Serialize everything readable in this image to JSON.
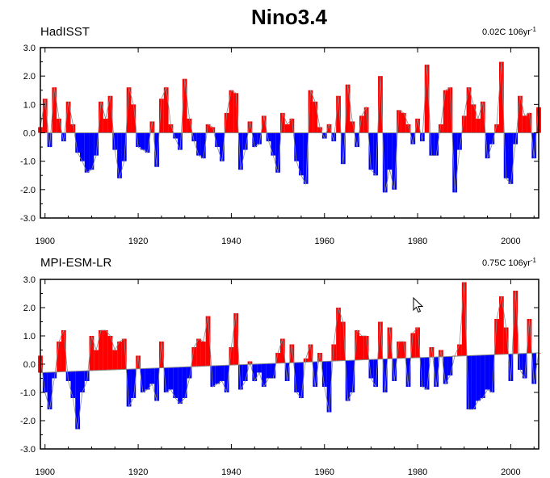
{
  "title": "Nino3.4",
  "chart_data": [
    {
      "type": "area",
      "title": "HadISST",
      "trend_label": "0.02C 106yr",
      "trend_label_sup": "-1",
      "x_ticks": [
        1900,
        1920,
        1940,
        1960,
        1980,
        2000
      ],
      "y_ticks": [
        3.0,
        2.0,
        1.0,
        0.0,
        -1.0,
        -2.0,
        -3.0
      ],
      "xlim": [
        1899,
        2006
      ],
      "ylim": [
        -3,
        3
      ],
      "baseline": [
        [
          1899,
          0.0
        ],
        [
          2006,
          0.0
        ]
      ],
      "colors": {
        "positive": "#ff0000",
        "negative": "#0000ff",
        "line": "#888888"
      },
      "series": [
        {
          "x": [
            1899,
            1900,
            1901,
            1902,
            1903,
            1904,
            1905,
            1906,
            1907,
            1908,
            1909,
            1910,
            1911,
            1912,
            1913,
            1914,
            1915,
            1916,
            1917,
            1918,
            1919,
            1920,
            1921,
            1922,
            1923,
            1924,
            1925,
            1926,
            1927,
            1928,
            1929,
            1930,
            1931,
            1932,
            1933,
            1934,
            1935,
            1936,
            1937,
            1938,
            1939,
            1940,
            1941,
            1942,
            1943,
            1944,
            1945,
            1946,
            1947,
            1948,
            1949,
            1950,
            1951,
            1952,
            1953,
            1954,
            1955,
            1956,
            1957,
            1958,
            1959,
            1960,
            1961,
            1962,
            1963,
            1964,
            1965,
            1966,
            1967,
            1968,
            1969,
            1970,
            1971,
            1972,
            1973,
            1974,
            1975,
            1976,
            1977,
            1978,
            1979,
            1980,
            1981,
            1982,
            1983,
            1984,
            1985,
            1986,
            1987,
            1988,
            1989,
            1990,
            1991,
            1992,
            1993,
            1994,
            1995,
            1996,
            1997,
            1998,
            1999,
            2000,
            2001,
            2002,
            2003,
            2004,
            2005,
            2006
          ],
          "values": [
            0.2,
            1.2,
            -0.5,
            1.6,
            0.5,
            -0.3,
            1.1,
            0.3,
            -0.7,
            -1.0,
            -1.4,
            -1.3,
            -0.8,
            1.1,
            0.5,
            1.3,
            -0.6,
            -1.6,
            -1.0,
            1.6,
            1.0,
            -0.5,
            -0.6,
            -0.7,
            0.4,
            -1.2,
            1.2,
            1.6,
            0.3,
            -0.2,
            -0.6,
            1.9,
            0.5,
            -0.3,
            -0.8,
            -0.9,
            0.3,
            0.2,
            -0.5,
            -1.0,
            0.7,
            1.5,
            1.4,
            -1.3,
            -0.6,
            0.4,
            -0.5,
            -0.4,
            0.6,
            -0.3,
            -0.8,
            -1.4,
            0.7,
            0.3,
            0.5,
            -1.0,
            -1.5,
            -1.8,
            1.5,
            1.1,
            0.2,
            -0.2,
            0.3,
            -0.3,
            1.3,
            -1.1,
            1.7,
            0.4,
            -0.5,
            0.6,
            0.9,
            -1.3,
            -1.5,
            2.0,
            -2.1,
            -1.3,
            -2.0,
            0.8,
            0.7,
            0.3,
            -0.4,
            0.5,
            -0.3,
            2.4,
            -0.8,
            -0.8,
            0.3,
            1.5,
            1.6,
            -2.1,
            -0.6,
            0.6,
            1.6,
            1.0,
            0.5,
            1.1,
            -0.9,
            -0.4,
            0.3,
            2.5,
            -1.6,
            -1.8,
            -0.4,
            1.3,
            0.6,
            0.7,
            -0.9,
            0.9
          ]
        }
      ]
    },
    {
      "type": "area",
      "title": "MPI-ESM-LR",
      "trend_label": "0.75C 106yr",
      "trend_label_sup": "-1",
      "x_ticks": [
        1900,
        1920,
        1940,
        1960,
        1980,
        2000
      ],
      "y_ticks": [
        3.0,
        2.0,
        1.0,
        0.0,
        -1.0,
        -2.0,
        -3.0
      ],
      "xlim": [
        1899,
        2006
      ],
      "ylim": [
        -3,
        3
      ],
      "baseline": [
        [
          1899,
          -0.3
        ],
        [
          2006,
          0.4
        ]
      ],
      "colors": {
        "positive": "#ff0000",
        "negative": "#0000ff",
        "line": "#888888"
      },
      "series": [
        {
          "x": [
            1899,
            1900,
            1901,
            1902,
            1903,
            1904,
            1905,
            1906,
            1907,
            1908,
            1909,
            1910,
            1911,
            1912,
            1913,
            1914,
            1915,
            1916,
            1917,
            1918,
            1919,
            1920,
            1921,
            1922,
            1923,
            1924,
            1925,
            1926,
            1927,
            1928,
            1929,
            1930,
            1931,
            1932,
            1933,
            1934,
            1935,
            1936,
            1937,
            1938,
            1939,
            1940,
            1941,
            1942,
            1943,
            1944,
            1945,
            1946,
            1947,
            1948,
            1949,
            1950,
            1951,
            1952,
            1953,
            1954,
            1955,
            1956,
            1957,
            1958,
            1959,
            1960,
            1961,
            1962,
            1963,
            1964,
            1965,
            1966,
            1967,
            1968,
            1969,
            1970,
            1971,
            1972,
            1973,
            1974,
            1975,
            1976,
            1977,
            1978,
            1979,
            1980,
            1981,
            1982,
            1983,
            1984,
            1985,
            1986,
            1987,
            1988,
            1989,
            1990,
            1991,
            1992,
            1993,
            1994,
            1995,
            1996,
            1997,
            1998,
            1999,
            2000,
            2001,
            2002,
            2003,
            2004,
            2005,
            2006
          ],
          "values": [
            0.3,
            -1.0,
            -1.6,
            -0.5,
            0.8,
            1.2,
            -0.6,
            -1.2,
            -2.3,
            -1.0,
            -0.6,
            1.0,
            0.5,
            1.2,
            1.2,
            1.0,
            0.5,
            0.8,
            0.9,
            -1.5,
            -1.2,
            0.3,
            -1.0,
            -0.9,
            -0.7,
            -1.3,
            0.8,
            -1.0,
            -0.9,
            -1.2,
            -1.4,
            -1.2,
            -0.5,
            0.6,
            0.9,
            0.8,
            1.7,
            -0.8,
            -0.7,
            -0.6,
            -1.0,
            0.6,
            1.8,
            -0.9,
            -0.6,
            0.1,
            -0.6,
            -0.3,
            -0.8,
            -0.5,
            -0.5,
            0.4,
            0.9,
            -0.6,
            0.7,
            -1.0,
            -1.2,
            0.2,
            0.7,
            -0.8,
            0.4,
            -0.8,
            -1.7,
            0.7,
            2.0,
            1.5,
            -1.3,
            -1.0,
            1.2,
            1.0,
            1.0,
            -0.5,
            -0.8,
            1.5,
            -1.0,
            1.3,
            -0.6,
            0.8,
            0.8,
            -0.8,
            1.1,
            1.3,
            -0.8,
            -0.9,
            0.6,
            -0.8,
            0.5,
            -0.7,
            -0.4,
            0.3,
            0.7,
            2.9,
            -1.6,
            -1.6,
            -1.3,
            -1.2,
            -0.9,
            -1.0,
            1.6,
            2.4,
            1.3,
            -0.6,
            2.6,
            -0.2,
            -0.5,
            1.6,
            -0.7,
            0.4
          ]
        }
      ]
    }
  ]
}
